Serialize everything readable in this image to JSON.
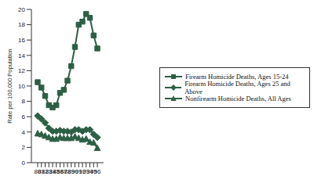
{
  "chart_data": {
    "type": "line",
    "y_label": "Rate per 100,000 Population",
    "categories": [
      "80",
      "81",
      "82",
      "83",
      "84",
      "85",
      "86",
      "87",
      "88",
      "89",
      "90",
      "91",
      "92",
      "93",
      "94",
      "95",
      "96"
    ],
    "series": [
      {
        "name": "Firearm Homicide Deaths, Ages 15-24",
        "color": "#2d5f45",
        "marker": "square",
        "values": [
          10.5,
          9.8,
          8.7,
          7.5,
          7.2,
          7.5,
          9.1,
          9.5,
          10.7,
          12.6,
          15.1,
          18.0,
          18.4,
          19.4,
          18.9,
          16.6,
          14.9
        ]
      },
      {
        "name": "Firearm Homicide Deaths, Ages 25 and Above",
        "color": "#2d5f45",
        "marker": "diamond",
        "values": [
          6.1,
          5.7,
          5.2,
          4.5,
          4.1,
          4.1,
          4.2,
          4.1,
          4.1,
          4.0,
          4.3,
          4.3,
          4.1,
          4.3,
          4.3,
          3.7,
          3.3
        ]
      },
      {
        "name": "Nonfirearm Homicide Deaths, All Ages",
        "color": "#2d5f45",
        "marker": "triangle",
        "values": [
          3.8,
          3.7,
          3.5,
          3.3,
          3.1,
          3.1,
          3.3,
          3.2,
          3.2,
          3.2,
          3.4,
          3.2,
          3.0,
          3.1,
          2.7,
          2.6,
          1.9
        ]
      }
    ],
    "ylim": [
      0,
      20
    ],
    "yticks": [
      0,
      2,
      4,
      6,
      8,
      10,
      12,
      14,
      16,
      18,
      20
    ],
    "grid": false,
    "legend": "right"
  }
}
